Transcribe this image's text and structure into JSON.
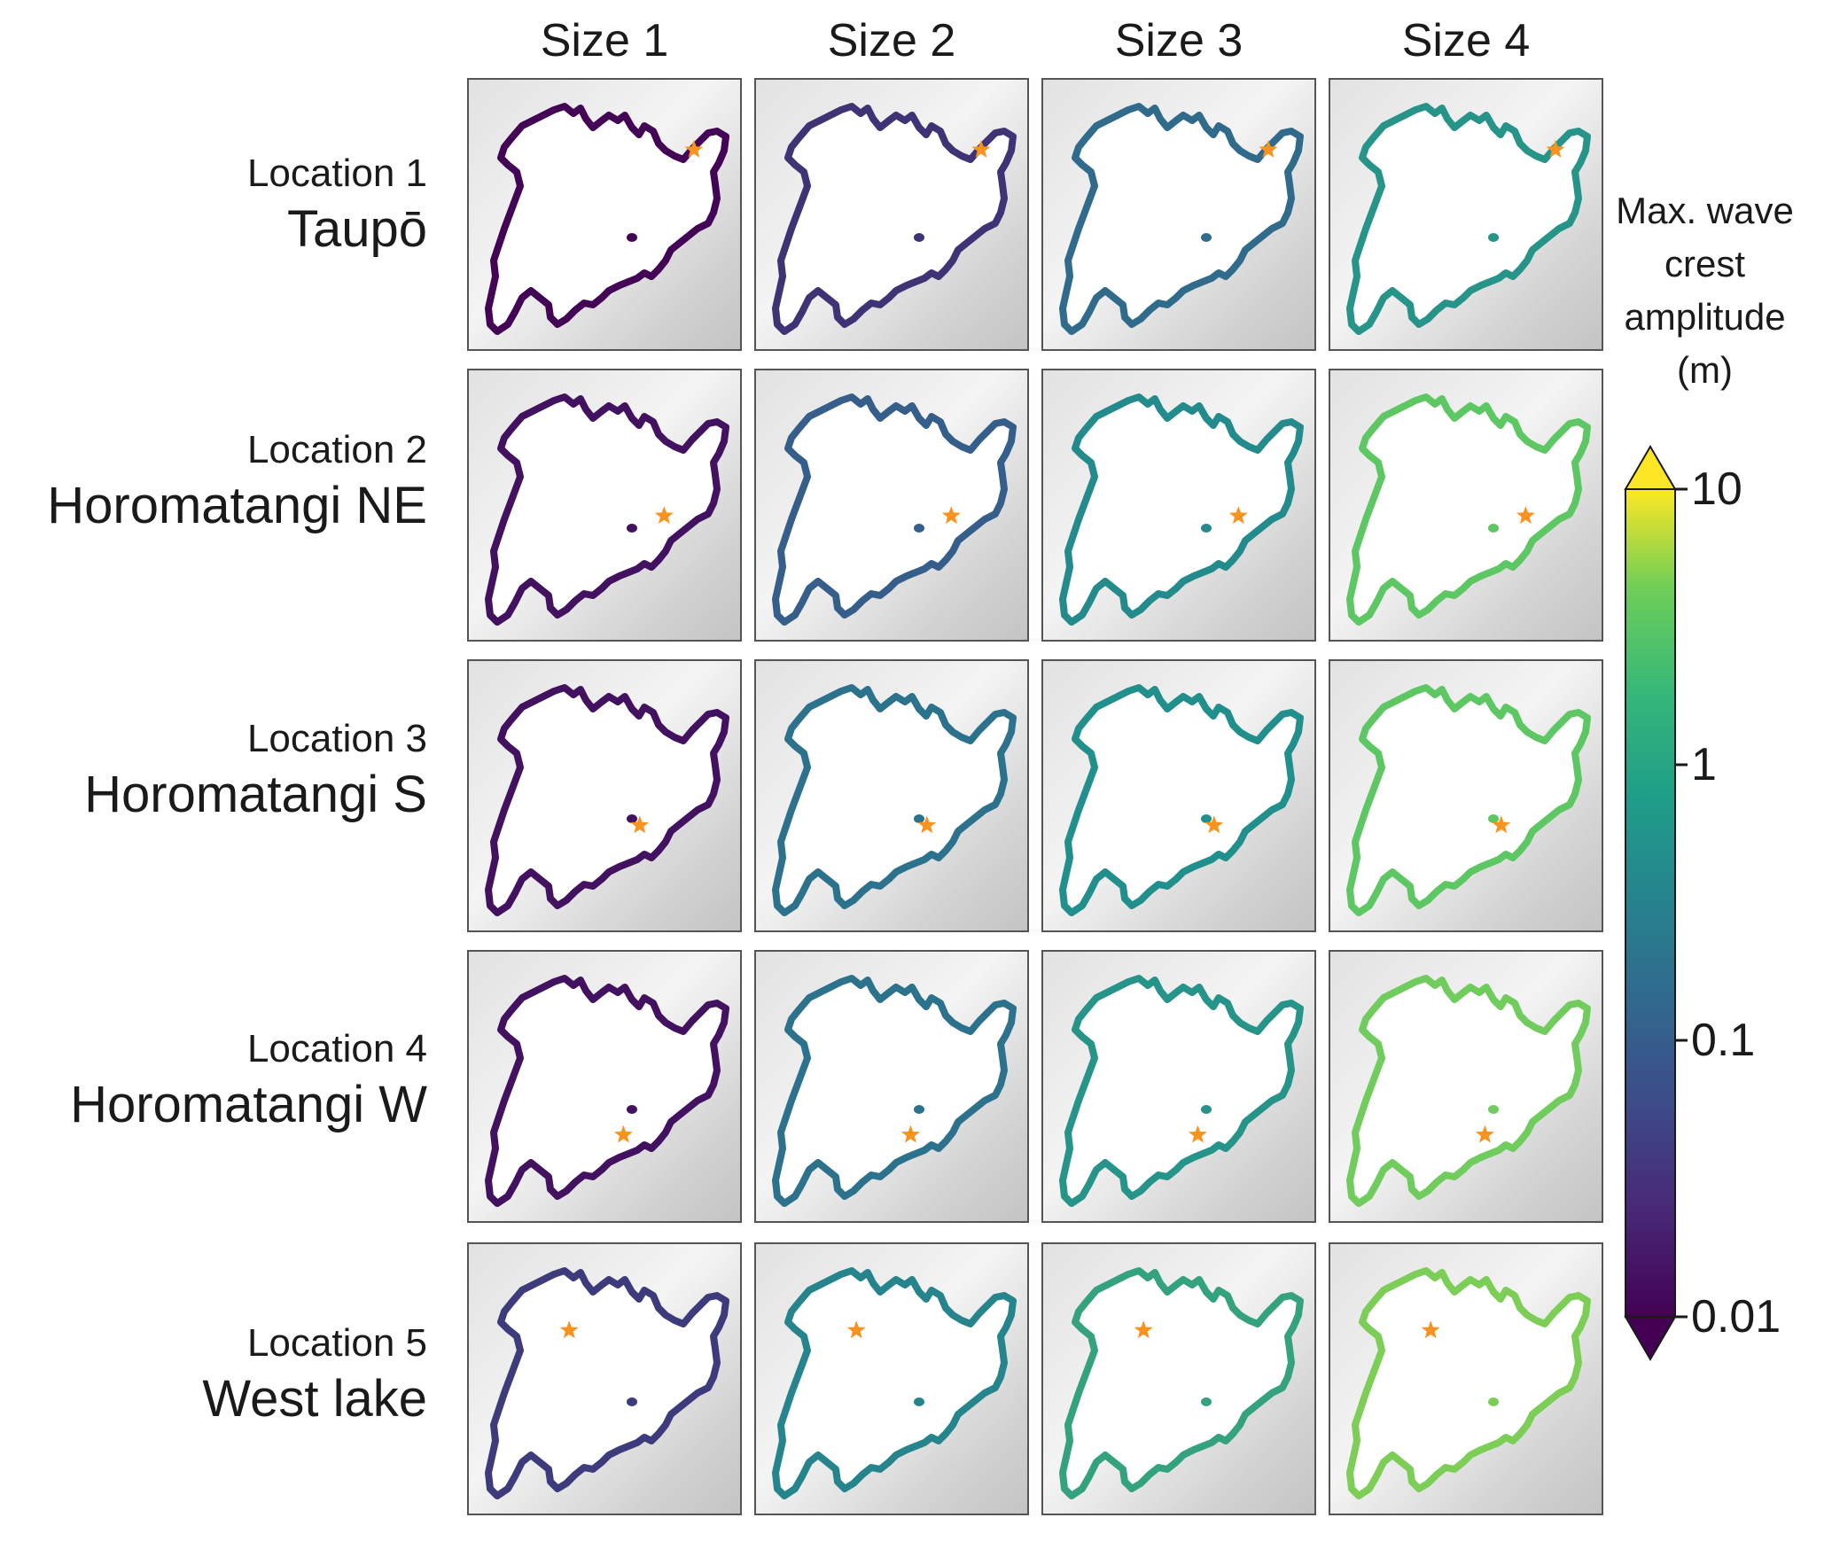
{
  "columns": [
    "Size 1",
    "Size 2",
    "Size 3",
    "Size 4"
  ],
  "rows": [
    {
      "location": "Location 1",
      "name": "Taupō"
    },
    {
      "location": "Location 2",
      "name": "Horomatangi NE"
    },
    {
      "location": "Location 3",
      "name": "Horomatangi S"
    },
    {
      "location": "Location 4",
      "name": "Horomatangi W"
    },
    {
      "location": "Location 5",
      "name": "West lake"
    }
  ],
  "colorbar": {
    "title": [
      "Max. wave",
      "crest",
      "amplitude",
      "(m)"
    ],
    "ticks": [
      "10",
      "1",
      "0.1",
      "0.01"
    ],
    "scale": "log",
    "colormap": "viridis",
    "range": [
      0.01,
      10
    ]
  },
  "panel_levels": [
    [
      0.01,
      0.15,
      0.35,
      0.52
    ],
    [
      0.05,
      0.3,
      0.48,
      0.75
    ],
    [
      0.05,
      0.38,
      0.5,
      0.75
    ],
    [
      0.05,
      0.38,
      0.52,
      0.78
    ],
    [
      0.18,
      0.45,
      0.58,
      0.8
    ]
  ],
  "colors": {
    "source_star": "#f7931e",
    "viridis": [
      "#440154",
      "#3b528b",
      "#21908c",
      "#5dc863",
      "#fde725"
    ]
  }
}
